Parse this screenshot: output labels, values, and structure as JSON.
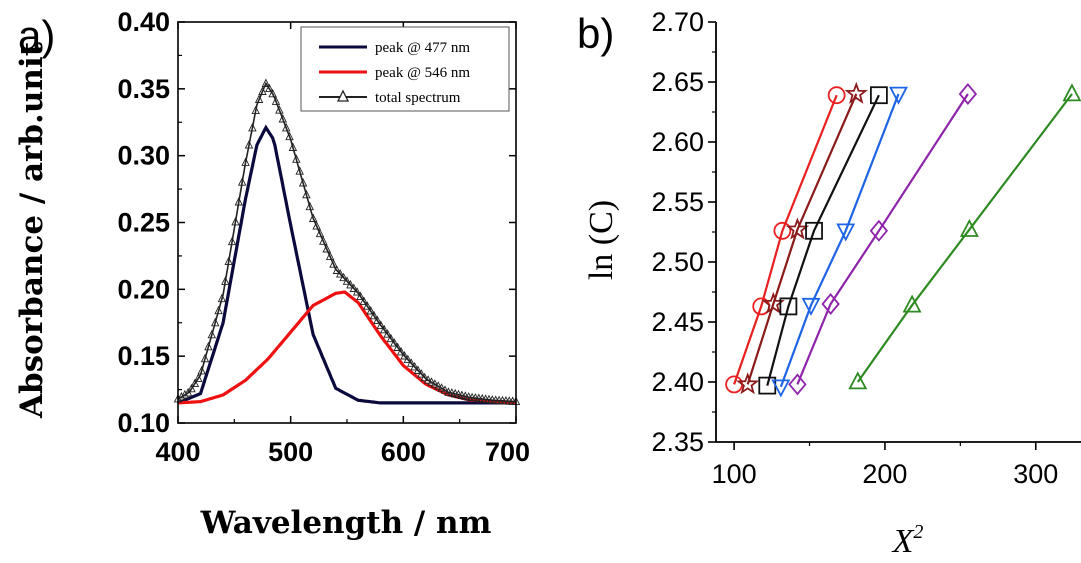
{
  "chart_data": [
    {
      "panel_label": "a)",
      "type": "line",
      "xlabel": "Wavelength / nm",
      "ylabel": "Absorbance / arb.unit",
      "xlim": [
        400,
        700
      ],
      "ylim": [
        0.1,
        0.4
      ],
      "xticks": [
        "400",
        "500",
        "600",
        "700"
      ],
      "yticks": [
        "0.10",
        "0.15",
        "0.20",
        "0.25",
        "0.30",
        "0.35",
        "0.40"
      ],
      "legend_position": "top-right",
      "series": [
        {
          "name": "peak @ 477 nm",
          "color": "#0a0a3c",
          "marker": "none",
          "x": [
            400,
            420,
            440,
            460,
            470,
            478,
            485,
            500,
            520,
            540,
            560,
            580,
            600,
            650,
            700
          ],
          "y": [
            0.115,
            0.122,
            0.175,
            0.268,
            0.308,
            0.321,
            0.312,
            0.248,
            0.166,
            0.126,
            0.117,
            0.115,
            0.115,
            0.115,
            0.115
          ]
        },
        {
          "name": "peak @ 546 nm",
          "color": "#ee1111",
          "marker": "none",
          "x": [
            400,
            420,
            440,
            460,
            480,
            500,
            520,
            540,
            548,
            560,
            580,
            600,
            620,
            640,
            660,
            680,
            700
          ],
          "y": [
            0.115,
            0.116,
            0.121,
            0.132,
            0.148,
            0.168,
            0.188,
            0.197,
            0.198,
            0.19,
            0.165,
            0.143,
            0.129,
            0.121,
            0.117,
            0.116,
            0.115
          ]
        },
        {
          "name": "total spectrum",
          "color": "#222222",
          "marker": "triangle",
          "x": [
            400,
            410,
            420,
            440,
            460,
            470,
            478,
            485,
            500,
            520,
            540,
            560,
            580,
            600,
            620,
            640,
            660,
            680,
            700
          ],
          "y": [
            0.118,
            0.123,
            0.136,
            0.196,
            0.295,
            0.338,
            0.354,
            0.345,
            0.312,
            0.253,
            0.215,
            0.197,
            0.173,
            0.151,
            0.133,
            0.123,
            0.119,
            0.117,
            0.116
          ]
        }
      ]
    },
    {
      "panel_label": "b)",
      "type": "line",
      "xlabel": "X",
      "xlabel_sup": "2",
      "ylabel": "ln (C)",
      "xlim": [
        88,
        330
      ],
      "ylim": [
        2.35,
        2.7
      ],
      "xticks": [
        "100",
        "200",
        "300"
      ],
      "yticks": [
        "2.35",
        "2.40",
        "2.45",
        "2.50",
        "2.55",
        "2.60",
        "2.65",
        "2.70"
      ],
      "series": [
        {
          "color": "#e82020",
          "marker": "circle",
          "x": [
            100,
            118,
            132,
            168
          ],
          "y": [
            2.398,
            2.463,
            2.526,
            2.639
          ]
        },
        {
          "color": "#8b1a1a",
          "marker": "star",
          "x": [
            109,
            126,
            142,
            181
          ],
          "y": [
            2.398,
            2.465,
            2.527,
            2.64
          ]
        },
        {
          "color": "#111111",
          "marker": "square",
          "x": [
            122,
            136,
            153,
            196
          ],
          "y": [
            2.397,
            2.463,
            2.526,
            2.639
          ]
        },
        {
          "color": "#1e64e6",
          "marker": "triangle-down",
          "x": [
            131,
            151,
            174,
            209
          ],
          "y": [
            2.396,
            2.464,
            2.526,
            2.64
          ]
        },
        {
          "color": "#8e24aa",
          "marker": "diamond",
          "x": [
            142,
            164,
            196,
            255
          ],
          "y": [
            2.398,
            2.465,
            2.526,
            2.64
          ]
        },
        {
          "color": "#2e8b22",
          "marker": "triangle",
          "x": [
            182,
            218,
            256,
            324
          ],
          "y": [
            2.4,
            2.464,
            2.527,
            2.64
          ]
        }
      ]
    }
  ]
}
